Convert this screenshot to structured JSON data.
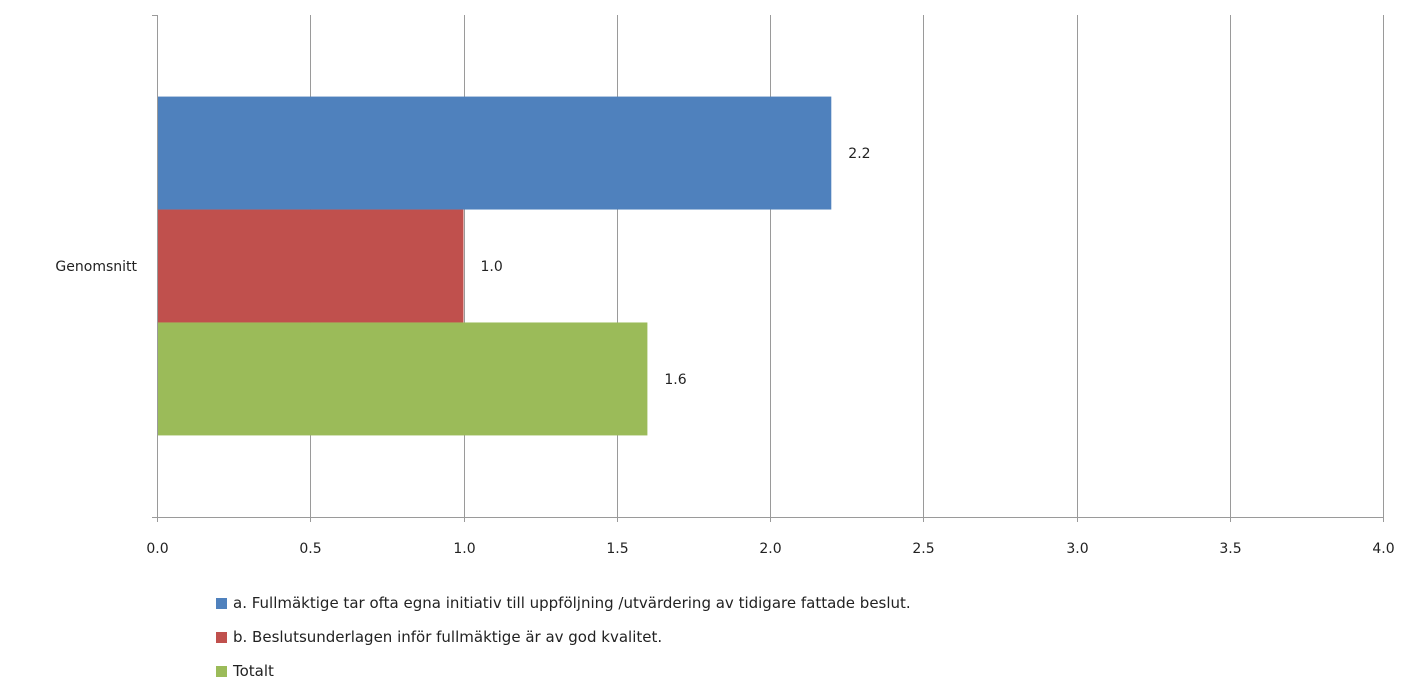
{
  "chart_data": {
    "type": "bar",
    "orientation": "horizontal",
    "categories": [
      "Genomsnitt"
    ],
    "series": [
      {
        "name": "a. Fullmäktige tar ofta egna initiativ till uppföljning /utvärdering av tidigare fattade beslut.",
        "values": [
          2.2
        ],
        "labels": [
          "2.2"
        ],
        "color": "#4f81bd"
      },
      {
        "name": "b. Beslutsunderlagen inför fullmäktige är av god kvalitet.",
        "values": [
          1.0
        ],
        "labels": [
          "1.0"
        ],
        "color": "#c0504d"
      },
      {
        "name": "Totalt",
        "values": [
          1.6
        ],
        "labels": [
          "1.6"
        ],
        "color": "#9bbb59"
      }
    ],
    "xlim": [
      0,
      4.0
    ],
    "ticks": [
      0.0,
      0.5,
      1.0,
      1.5,
      2.0,
      2.5,
      3.0,
      3.5,
      4.0
    ],
    "tick_labels": [
      "0.0",
      "0.5",
      "1.0",
      "1.5",
      "2.0",
      "2.5",
      "3.0",
      "3.5",
      "4.0"
    ],
    "grid": true,
    "legend_position": "bottom",
    "title": "",
    "xlabel": "",
    "ylabel": ""
  }
}
